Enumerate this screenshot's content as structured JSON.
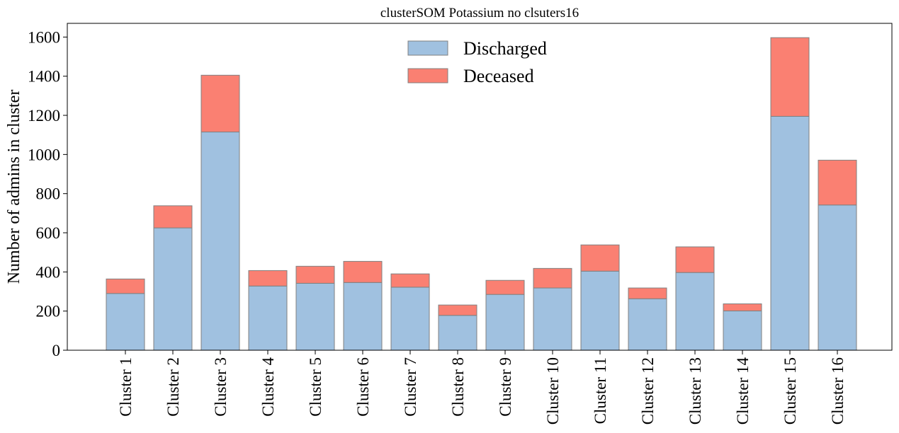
{
  "chart_data": {
    "type": "bar",
    "stacked": true,
    "title": "clusterSOM Potassium no clsuters16",
    "xlabel": "",
    "ylabel": "Number of admins in cluster",
    "ylim": [
      0,
      1670
    ],
    "yticks": [
      0,
      200,
      400,
      600,
      800,
      1000,
      1200,
      1400,
      1600
    ],
    "categories": [
      "Cluster 1",
      "Cluster 2",
      "Cluster 3",
      "Cluster 4",
      "Cluster 5",
      "Cluster 6",
      "Cluster 7",
      "Cluster 8",
      "Cluster 9",
      "Cluster 10",
      "Cluster 11",
      "Cluster 12",
      "Cluster 13",
      "Cluster 14",
      "Cluster 15",
      "Cluster 16"
    ],
    "series": [
      {
        "name": "Discharged",
        "color": "#a0c1e0",
        "values": [
          290,
          625,
          1115,
          328,
          342,
          346,
          322,
          178,
          285,
          318,
          404,
          263,
          397,
          201,
          1195,
          742
        ]
      },
      {
        "name": "Deceased",
        "color": "#fa8072",
        "values": [
          74,
          113,
          290,
          79,
          87,
          108,
          68,
          53,
          72,
          100,
          134,
          55,
          131,
          36,
          402,
          229
        ]
      }
    ],
    "bar_edge_color": "#808080",
    "legend_position": "top-center",
    "grid": false
  }
}
